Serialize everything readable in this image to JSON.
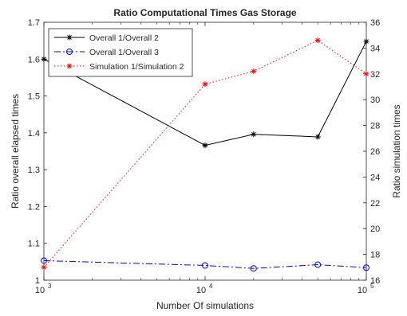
{
  "chart_data": {
    "type": "line",
    "title": "Ratio Computational Times Gas Storage",
    "xlabel": "Number Of simulations",
    "ylabel_left": "Ratio overall elapsed times",
    "ylabel_right": "Ratio simulation times",
    "x_scale": "log",
    "xlim": [
      1000,
      100000
    ],
    "ylim_left": [
      1.0,
      1.7
    ],
    "ylim_right": [
      16,
      36
    ],
    "x_ticks": [
      {
        "value": 1000,
        "base": "10",
        "exp": "3"
      },
      {
        "value": 10000,
        "base": "10",
        "exp": "4"
      },
      {
        "value": 100000,
        "base": "10",
        "exp": "5"
      }
    ],
    "y_ticks_left": [
      "1",
      "1.1",
      "1.2",
      "1.3",
      "1.4",
      "1.5",
      "1.6",
      "1.7"
    ],
    "y_ticks_right": [
      "16",
      "18",
      "20",
      "22",
      "24",
      "26",
      "28",
      "30",
      "32",
      "34",
      "36"
    ],
    "grid": false,
    "legend_position": "top-left",
    "series": [
      {
        "name": "Overall 1/Overall 2",
        "axis": "left",
        "color": "#000000",
        "line_style": "solid",
        "marker": "asterisk",
        "x": [
          1000,
          10000,
          20000,
          50000,
          100000
        ],
        "y": [
          1.6,
          1.366,
          1.396,
          1.389,
          1.648
        ]
      },
      {
        "name": "Overall 1/Overall 3",
        "axis": "left",
        "color": "#0000ff",
        "line_style": "dashdot",
        "marker": "circle",
        "x": [
          1000,
          10000,
          20000,
          50000,
          100000
        ],
        "y": [
          1.053,
          1.04,
          1.032,
          1.042,
          1.034
        ]
      },
      {
        "name": "Simulation 1/Simulation 2",
        "axis": "right",
        "color": "#ff0000",
        "line_style": "dotted",
        "marker": "asterisk",
        "x": [
          1000,
          10000,
          20000,
          50000,
          100000
        ],
        "y": [
          17.0,
          31.2,
          32.2,
          34.6,
          32.0
        ]
      }
    ]
  }
}
